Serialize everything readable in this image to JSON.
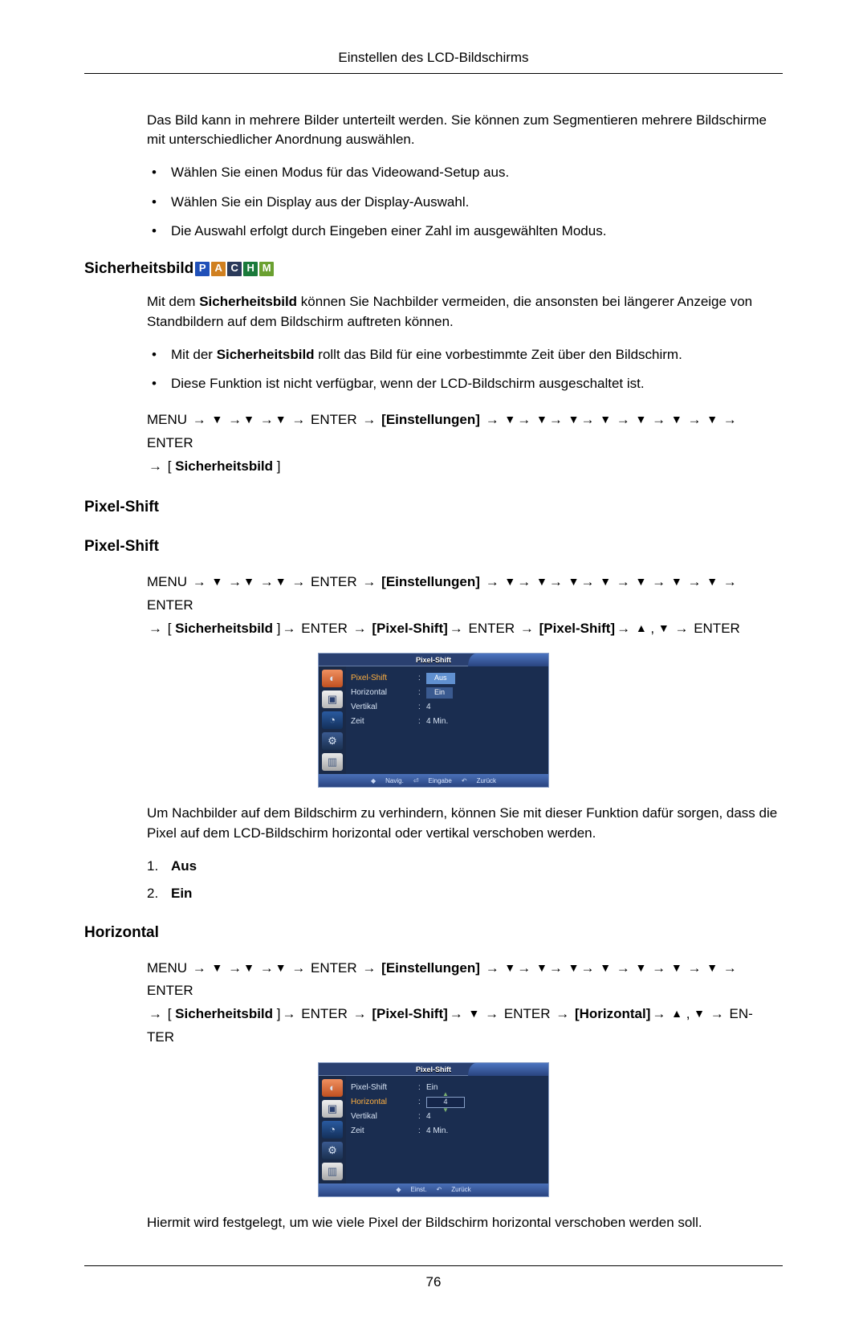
{
  "header": "Einstellen des LCD-Bildschirms",
  "intro_text": "Das Bild kann in mehrere Bilder unterteilt werden. Sie können zum Segmentieren mehrere Bildschirme mit unterschiedlicher Anordnung auswählen.",
  "intro_bullets": [
    "Wählen Sie einen Modus für das Videowand-Setup aus.",
    "Wählen Sie ein Display aus der Display-Auswahl.",
    "Die Auswahl erfolgt durch Eingeben einer Zahl im ausgewählten Modus."
  ],
  "sicherheitsbild": {
    "title": "Sicherheitsbild",
    "badges": [
      "P",
      "A",
      "C",
      "H",
      "M"
    ],
    "p1_a": "Mit dem ",
    "p1_b": "Sicherheitsbild",
    "p1_c": " können Sie Nachbilder vermeiden, die ansonsten bei längerer Anzeige von Standbildern auf dem Bildschirm auftreten können.",
    "bullets": {
      "b1_a": "Mit der ",
      "b1_b": "Sicherheitsbild",
      "b1_c": " rollt das Bild für eine vorbestimmte Zeit über den Bildschirm.",
      "b2": "Diese Funktion ist nicht verfügbar, wenn der LCD-Bildschirm ausgeschaltet ist."
    },
    "menu": {
      "MENU": "MENU",
      "ENTER": "ENTER",
      "Einstellungen": "Einstellungen",
      "Sicherheitsbild": "Sicherheitsbild"
    }
  },
  "pixel_shift_h1": "Pixel-Shift",
  "pixel_shift_h2": "Pixel-Shift",
  "pixel_shift_menu": {
    "MENU": "MENU",
    "ENTER": "ENTER",
    "Einstellungen": "Einstellungen",
    "Sicherheitsbild": "Sicherheitsbild",
    "PixelShift": "Pixel-Shift"
  },
  "osd1": {
    "title": "Pixel-Shift",
    "rows": [
      {
        "label": "Pixel-Shift",
        "value": "Aus",
        "hl_label": true,
        "boxed": true
      },
      {
        "label": "Horizontal",
        "value": "Ein",
        "hl_label": false,
        "boxed": true,
        "boxed_alt": true
      },
      {
        "label": "Vertikal",
        "value": "4"
      },
      {
        "label": "Zeit",
        "value": "4 Min."
      }
    ],
    "footer": {
      "nav": "Navig.",
      "enter": "Eingabe",
      "back": "Zurück"
    }
  },
  "pixel_shift_desc": "Um Nachbilder auf dem Bildschirm zu verhindern, können Sie mit dieser Funktion dafür sorgen, dass die Pixel auf dem LCD-Bildschirm horizontal oder vertikal verschoben werden.",
  "pixel_shift_list": [
    {
      "num": "1.",
      "text": "Aus"
    },
    {
      "num": "2.",
      "text": "Ein"
    }
  ],
  "horizontal": {
    "title": "Horizontal",
    "menu": {
      "MENU": "MENU",
      "ENTER": "ENTER",
      "ENTER_END": "ENTER",
      "Einstellungen": "Einstellungen",
      "Sicherheitsbild": "Sicherheitsbild",
      "PixelShift": "Pixel-Shift",
      "Horizontal": "Horizontal"
    }
  },
  "osd2": {
    "title": "Pixel-Shift",
    "rows": [
      {
        "label": "Pixel-Shift",
        "value": "Ein"
      },
      {
        "label": "Horizontal",
        "value": "4",
        "hl_label": true,
        "spin": true
      },
      {
        "label": "Vertikal",
        "value": "4"
      },
      {
        "label": "Zeit",
        "value": "4 Min."
      }
    ],
    "footer": {
      "adjust": "Einst.",
      "back": "Zurück"
    }
  },
  "horizontal_desc": "Hiermit wird festgelegt, um wie viele Pixel der Bildschirm horizontal verschoben werden soll.",
  "page_num": "76",
  "osd_colors": {
    "bg": "#1a2d50",
    "border": "#8aa0c8",
    "text": "#d8e4f4",
    "title_bg": "#2a4070",
    "tab_grad_a": "#4c74c0",
    "tab_grad_b": "#2a4480",
    "highlight": "#ffb040",
    "valbox": "#6090d0",
    "icon_colors": [
      "#f09060",
      "#f0f0f0",
      "#2a5aa0",
      "#3a5a90",
      "#e8e8e8"
    ]
  }
}
